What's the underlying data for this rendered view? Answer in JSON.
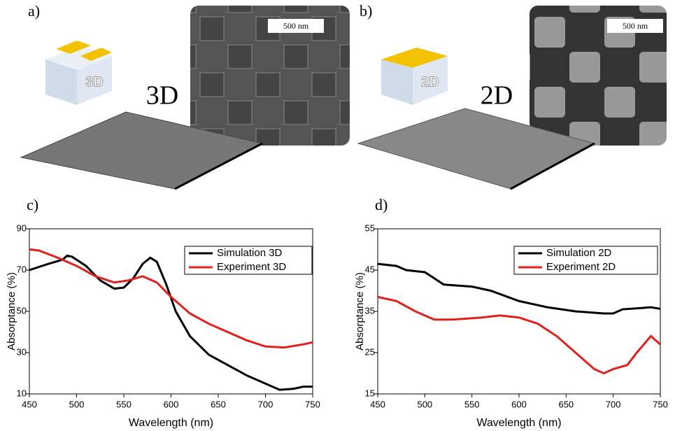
{
  "panels": {
    "a": {
      "label": "a)",
      "text": "3D",
      "scale": "500 nm"
    },
    "b": {
      "label": "b)",
      "text": "2D",
      "scale": "500 nm"
    }
  },
  "chart_data": [
    {
      "type": "line",
      "label": "c)",
      "x_label": "Wavelength (nm)",
      "y_label": "Absorptance (%)",
      "xlim": [
        450,
        750
      ],
      "xticks": [
        450,
        500,
        550,
        600,
        650,
        700,
        750
      ],
      "ylim": [
        10,
        90
      ],
      "yticks": [
        10,
        30,
        50,
        70,
        90
      ],
      "series": [
        {
          "name": "Simulation 3D",
          "color": "#000000",
          "x": [
            450,
            470,
            485,
            490,
            495,
            510,
            525,
            540,
            550,
            560,
            570,
            578,
            585,
            595,
            605,
            620,
            640,
            660,
            680,
            700,
            715,
            730,
            740,
            750
          ],
          "values": [
            70,
            73,
            75,
            77,
            76.5,
            72,
            65,
            61,
            61.5,
            66,
            73,
            76,
            74,
            63,
            50,
            38,
            29,
            24,
            19,
            15,
            12,
            12.5,
            13.5,
            13.5
          ]
        },
        {
          "name": "Experiment 3D",
          "color": "#e0201c",
          "x": [
            450,
            460,
            480,
            500,
            520,
            540,
            555,
            570,
            585,
            600,
            620,
            640,
            660,
            680,
            700,
            720,
            740,
            750
          ],
          "values": [
            80,
            79.5,
            76,
            72,
            67,
            64,
            65,
            67,
            64,
            57,
            49,
            44,
            40,
            36,
            33,
            32.5,
            34,
            35
          ]
        }
      ]
    },
    {
      "type": "line",
      "label": "d)",
      "x_label": "Wavelength (nm)",
      "y_label": "Absorptance (%)",
      "xlim": [
        450,
        750
      ],
      "xticks": [
        450,
        500,
        550,
        600,
        650,
        700,
        750
      ],
      "ylim": [
        15,
        55
      ],
      "yticks": [
        15,
        25,
        35,
        45,
        55
      ],
      "series": [
        {
          "name": "Simulation 2D",
          "color": "#000000",
          "x": [
            450,
            470,
            480,
            500,
            510,
            520,
            550,
            570,
            600,
            630,
            660,
            690,
            700,
            710,
            730,
            740,
            750
          ],
          "values": [
            46.5,
            46,
            45,
            44.5,
            43,
            41.5,
            41,
            40,
            37.5,
            36,
            35,
            34.5,
            34.5,
            35.5,
            35.8,
            36,
            35.6
          ]
        },
        {
          "name": "Experiment 2D",
          "color": "#e0201c",
          "x": [
            450,
            470,
            490,
            510,
            530,
            560,
            580,
            600,
            620,
            640,
            660,
            680,
            690,
            700,
            715,
            725,
            740,
            750
          ],
          "values": [
            38.5,
            37.5,
            35,
            33,
            33,
            33.5,
            34,
            33.5,
            32,
            29,
            25,
            21,
            20,
            21,
            22,
            25,
            29,
            27
          ]
        }
      ]
    }
  ]
}
